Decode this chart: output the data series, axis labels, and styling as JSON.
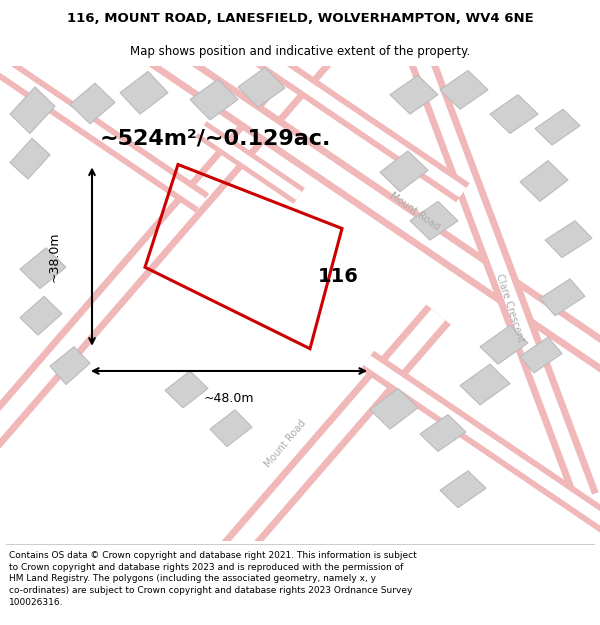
{
  "title_line1": "116, MOUNT ROAD, LANESFIELD, WOLVERHAMPTON, WV4 6NE",
  "title_line2": "Map shows position and indicative extent of the property.",
  "area_text": "~524m²/~0.129ac.",
  "label_116": "116",
  "label_width": "~48.0m",
  "label_height": "~38.0m",
  "footer_text": "Contains OS data © Crown copyright and database right 2021. This information is subject to Crown copyright and database rights 2023 and is reproduced with the permission of HM Land Registry. The polygons (including the associated geometry, namely x, y co-ordinates) are subject to Crown copyright and database rights 2023 Ordnance Survey 100026316.",
  "road_color": "#f0b8b8",
  "road_center_color": "#ffffff",
  "building_color": "#d0d0d0",
  "building_outline": "#bbbbbb",
  "map_bg": "#f8f8f8",
  "property_color": "#cc0000",
  "title_fontsize": 9.5,
  "subtitle_fontsize": 8.5,
  "area_fontsize": 16,
  "measure_fontsize": 9,
  "label_116_fontsize": 14,
  "road_label_fontsize": 7,
  "footer_fontsize": 6.5
}
